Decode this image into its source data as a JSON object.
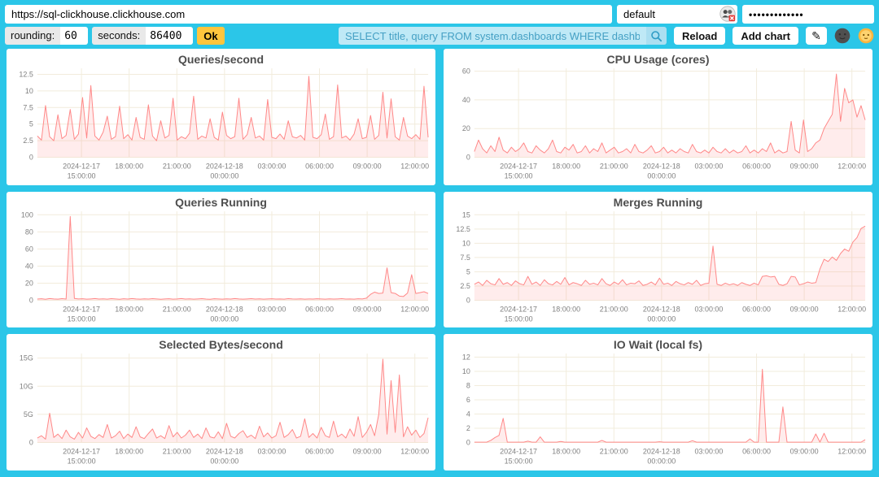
{
  "topbar": {
    "url_value": "https://sql-clickhouse.clickhouse.com",
    "user_value": "default",
    "password_value": "•••••••••••••",
    "auth_icon": "busts-silhouette-with-red-x",
    "rounding_label": "rounding:",
    "rounding_value": "60",
    "seconds_label": "seconds:",
    "seconds_value": "86400",
    "ok_label": "Ok",
    "query_value": "SELECT title, query FROM system.dashboards WHERE dashboard = '",
    "search_icon": "magnifier",
    "reload_label": "Reload",
    "add_chart_label": "Add chart",
    "edit_icon_glyph": "✎",
    "dark_theme_icon": "new-moon-face",
    "light_theme_icon": "sun-with-face"
  },
  "colors": {
    "background": "#2bc6e8",
    "panel": "#ffffff",
    "series": "#ff8888",
    "series_fill_opacity": 0.16,
    "grid": "#f2ecdc",
    "axis_text": "#808080",
    "title_text": "#4e4e4e",
    "ok_button": "#ffc53d",
    "query_bg": "#bfe9f6",
    "query_text": "#45a0c4"
  },
  "chart_data": [
    {
      "type": "area",
      "title": "Queries/second",
      "ylim": [
        0,
        13.4
      ],
      "y_ticks": [
        {
          "value": 0,
          "label": "0"
        },
        {
          "value": 2.5,
          "label": "2.5"
        },
        {
          "value": 5,
          "label": "5"
        },
        {
          "value": 7.5,
          "label": "7.5"
        },
        {
          "value": 10,
          "label": "10"
        },
        {
          "value": 12.5,
          "label": "12.5"
        }
      ],
      "x_ticks": [
        {
          "fraction": 0.113,
          "line1": "2024-12-17",
          "line2": "15:00:00"
        },
        {
          "fraction": 0.235,
          "line1": "18:00:00",
          "line2": ""
        },
        {
          "fraction": 0.357,
          "line1": "21:00:00",
          "line2": ""
        },
        {
          "fraction": 0.479,
          "line1": "2024-12-18",
          "line2": "00:00:00"
        },
        {
          "fraction": 0.6,
          "line1": "03:00:00",
          "line2": ""
        },
        {
          "fraction": 0.722,
          "line1": "06:00:00",
          "line2": ""
        },
        {
          "fraction": 0.844,
          "line1": "09:00:00",
          "line2": ""
        },
        {
          "fraction": 0.966,
          "line1": "12:00:00",
          "line2": ""
        }
      ],
      "values": [
        3.2,
        2.6,
        7.8,
        3.1,
        2.5,
        6.4,
        2.8,
        3.3,
        7.2,
        2.7,
        3.5,
        9.0,
        2.9,
        10.8,
        3.2,
        2.6,
        3.8,
        6.2,
        2.7,
        3.1,
        7.7,
        2.8,
        3.4,
        2.6,
        6.0,
        3.0,
        2.7,
        7.9,
        3.2,
        2.5,
        5.5,
        2.9,
        3.3,
        8.9,
        2.6,
        3.1,
        2.8,
        3.6,
        9.2,
        2.7,
        3.2,
        2.9,
        5.8,
        3.0,
        2.6,
        6.8,
        3.3,
        2.8,
        3.1,
        8.9,
        2.7,
        3.4,
        6.0,
        2.9,
        3.2,
        2.6,
        8.7,
        3.0,
        2.8,
        3.5,
        2.7,
        5.5,
        3.1,
        2.9,
        3.3,
        2.6,
        12.2,
        3.0,
        2.8,
        3.4,
        6.5,
        2.7,
        3.1,
        10.9,
        2.9,
        3.2,
        2.6,
        3.5,
        5.8,
        2.8,
        3.0,
        6.3,
        2.7,
        3.3,
        9.8,
        2.9,
        8.8,
        3.1,
        2.6,
        6.0,
        3.2,
        2.8,
        3.4,
        2.7,
        10.7,
        3.0
      ]
    },
    {
      "type": "area",
      "title": "CPU Usage (cores)",
      "ylim": [
        0,
        62
      ],
      "y_ticks": [
        {
          "value": 0,
          "label": "0"
        },
        {
          "value": 20,
          "label": "20"
        },
        {
          "value": 40,
          "label": "40"
        },
        {
          "value": 60,
          "label": "60"
        }
      ],
      "x_ticks": [
        {
          "fraction": 0.113,
          "line1": "2024-12-17",
          "line2": "15:00:00"
        },
        {
          "fraction": 0.235,
          "line1": "18:00:00",
          "line2": ""
        },
        {
          "fraction": 0.357,
          "line1": "21:00:00",
          "line2": ""
        },
        {
          "fraction": 0.479,
          "line1": "2024-12-18",
          "line2": "00:00:00"
        },
        {
          "fraction": 0.6,
          "line1": "03:00:00",
          "line2": ""
        },
        {
          "fraction": 0.722,
          "line1": "06:00:00",
          "line2": ""
        },
        {
          "fraction": 0.844,
          "line1": "09:00:00",
          "line2": ""
        },
        {
          "fraction": 0.966,
          "line1": "12:00:00",
          "line2": ""
        }
      ],
      "values": [
        4,
        12,
        6,
        3,
        8,
        4,
        14,
        5,
        3,
        7,
        4,
        6,
        10,
        4,
        3,
        8,
        5,
        3,
        6,
        12,
        4,
        3,
        7,
        5,
        9,
        3,
        4,
        8,
        3,
        6,
        4,
        10,
        3,
        5,
        7,
        3,
        4,
        6,
        3,
        9,
        4,
        3,
        5,
        8,
        3,
        4,
        7,
        3,
        5,
        3,
        6,
        4,
        3,
        9,
        4,
        3,
        5,
        3,
        7,
        4,
        3,
        6,
        3,
        5,
        3,
        4,
        8,
        3,
        5,
        3,
        6,
        4,
        10,
        3,
        5,
        3,
        4,
        25,
        5,
        3,
        26,
        4,
        6,
        10,
        12,
        20,
        25,
        30,
        58,
        25,
        48,
        38,
        40,
        28,
        36,
        26
      ]
    },
    {
      "type": "area",
      "title": "Queries Running",
      "ylim": [
        0,
        104
      ],
      "y_ticks": [
        {
          "value": 0,
          "label": "0"
        },
        {
          "value": 20,
          "label": "20"
        },
        {
          "value": 40,
          "label": "40"
        },
        {
          "value": 60,
          "label": "60"
        },
        {
          "value": 80,
          "label": "80"
        },
        {
          "value": 100,
          "label": "100"
        }
      ],
      "x_ticks": [
        {
          "fraction": 0.113,
          "line1": "2024-12-17",
          "line2": "15:00:00"
        },
        {
          "fraction": 0.235,
          "line1": "18:00:00",
          "line2": ""
        },
        {
          "fraction": 0.357,
          "line1": "21:00:00",
          "line2": ""
        },
        {
          "fraction": 0.479,
          "line1": "2024-12-18",
          "line2": "00:00:00"
        },
        {
          "fraction": 0.6,
          "line1": "03:00:00",
          "line2": ""
        },
        {
          "fraction": 0.722,
          "line1": "06:00:00",
          "line2": ""
        },
        {
          "fraction": 0.844,
          "line1": "09:00:00",
          "line2": ""
        },
        {
          "fraction": 0.966,
          "line1": "12:00:00",
          "line2": ""
        }
      ],
      "values": [
        1.4,
        1.8,
        1.2,
        2.0,
        1.5,
        1.3,
        1.9,
        1.4,
        98,
        2.2,
        1.5,
        1.8,
        1.3,
        1.6,
        2.0,
        1.4,
        1.7,
        1.3,
        1.9,
        1.5,
        1.2,
        1.8,
        1.4,
        2.1,
        1.6,
        1.3,
        1.7,
        1.4,
        1.9,
        1.5,
        1.2,
        1.6,
        1.8,
        1.3,
        1.5,
        2.0,
        1.4,
        1.7,
        1.3,
        1.6,
        1.9,
        1.4,
        1.2,
        1.8,
        1.5,
        1.3,
        1.7,
        1.4,
        2.0,
        1.5,
        1.3,
        1.6,
        1.9,
        1.4,
        1.7,
        1.3,
        1.5,
        1.8,
        1.4,
        1.6,
        1.3,
        1.9,
        1.5,
        1.4,
        1.7,
        1.3,
        1.6,
        1.4,
        1.8,
        1.5,
        1.3,
        1.7,
        1.4,
        1.6,
        1.9,
        1.4,
        1.5,
        1.3,
        1.8,
        1.6,
        2.5,
        7,
        9.5,
        8,
        8.5,
        38,
        9,
        8,
        5,
        4.5,
        8.5,
        30,
        8,
        9,
        10,
        8
      ]
    },
    {
      "type": "area",
      "title": "Merges Running",
      "ylim": [
        0,
        15.6
      ],
      "y_ticks": [
        {
          "value": 0,
          "label": "0"
        },
        {
          "value": 2.5,
          "label": "2.5"
        },
        {
          "value": 5,
          "label": "5"
        },
        {
          "value": 7.5,
          "label": "7.5"
        },
        {
          "value": 10,
          "label": "10"
        },
        {
          "value": 12.5,
          "label": "12.5"
        },
        {
          "value": 15,
          "label": "15"
        }
      ],
      "x_ticks": [
        {
          "fraction": 0.113,
          "line1": "2024-12-17",
          "line2": "15:00:00"
        },
        {
          "fraction": 0.235,
          "line1": "18:00:00",
          "line2": ""
        },
        {
          "fraction": 0.357,
          "line1": "21:00:00",
          "line2": ""
        },
        {
          "fraction": 0.479,
          "line1": "2024-12-18",
          "line2": "00:00:00"
        },
        {
          "fraction": 0.6,
          "line1": "03:00:00",
          "line2": ""
        },
        {
          "fraction": 0.722,
          "line1": "06:00:00",
          "line2": ""
        },
        {
          "fraction": 0.844,
          "line1": "09:00:00",
          "line2": ""
        },
        {
          "fraction": 0.966,
          "line1": "12:00:00",
          "line2": ""
        }
      ],
      "values": [
        2.8,
        3.2,
        2.6,
        3.5,
        2.9,
        2.7,
        3.8,
        2.8,
        3.1,
        2.6,
        3.4,
        2.9,
        2.7,
        4.2,
        2.8,
        3.2,
        2.6,
        3.6,
        2.9,
        2.7,
        3.3,
        2.8,
        4.0,
        2.7,
        3.1,
        2.9,
        2.6,
        3.5,
        2.8,
        3.0,
        2.7,
        3.8,
        2.9,
        2.6,
        3.2,
        2.8,
        3.6,
        2.7,
        3.0,
        2.9,
        3.4,
        2.6,
        2.8,
        3.2,
        2.7,
        3.9,
        2.8,
        3.0,
        2.6,
        3.3,
        2.9,
        2.7,
        3.1,
        2.8,
        3.5,
        2.6,
        2.9,
        3.0,
        9.5,
        2.8,
        2.6,
        3.0,
        2.7,
        2.9,
        2.6,
        3.1,
        2.8,
        2.6,
        3.0,
        2.7,
        4.2,
        4.3,
        4.1,
        4.2,
        2.8,
        2.6,
        2.9,
        4.2,
        4.1,
        2.7,
        2.9,
        3.2,
        3.0,
        3.1,
        5.5,
        7.2,
        6.8,
        7.6,
        7.0,
        8.2,
        9.0,
        8.6,
        10.2,
        11.0,
        12.6,
        13.0
      ]
    },
    {
      "type": "area",
      "title": "Selected Bytes/second",
      "ylim": [
        0,
        15.8
      ],
      "y_ticks": [
        {
          "value": 0,
          "label": "0"
        },
        {
          "value": 5,
          "label": "5G"
        },
        {
          "value": 10,
          "label": "10G"
        },
        {
          "value": 15,
          "label": "15G"
        }
      ],
      "x_ticks": [
        {
          "fraction": 0.113,
          "line1": "2024-12-17",
          "line2": "15:00:00"
        },
        {
          "fraction": 0.235,
          "line1": "18:00:00",
          "line2": ""
        },
        {
          "fraction": 0.357,
          "line1": "21:00:00",
          "line2": ""
        },
        {
          "fraction": 0.479,
          "line1": "2024-12-18",
          "line2": "00:00:00"
        },
        {
          "fraction": 0.6,
          "line1": "03:00:00",
          "line2": ""
        },
        {
          "fraction": 0.722,
          "line1": "06:00:00",
          "line2": ""
        },
        {
          "fraction": 0.844,
          "line1": "09:00:00",
          "line2": ""
        },
        {
          "fraction": 0.966,
          "line1": "12:00:00",
          "line2": ""
        }
      ],
      "values": [
        0.8,
        1.2,
        0.6,
        5.2,
        0.9,
        1.5,
        0.7,
        2.2,
        1.0,
        0.6,
        1.8,
        0.8,
        2.6,
        1.1,
        0.7,
        1.4,
        0.9,
        3.2,
        0.8,
        1.2,
        2.0,
        0.7,
        1.5,
        0.9,
        2.8,
        1.0,
        0.7,
        1.6,
        2.4,
        0.8,
        1.2,
        0.7,
        3.0,
        1.0,
        1.8,
        0.8,
        1.3,
        2.2,
        0.9,
        1.5,
        0.7,
        2.6,
        1.0,
        0.8,
        1.9,
        0.7,
        3.4,
        1.1,
        0.8,
        1.6,
        2.1,
        0.9,
        1.3,
        0.7,
        2.9,
        1.0,
        1.7,
        0.8,
        1.2,
        3.6,
        0.9,
        1.4,
        2.3,
        0.8,
        1.1,
        4.2,
        0.9,
        1.6,
        0.8,
        2.7,
        1.2,
        0.9,
        3.8,
        1.0,
        1.5,
        0.8,
        2.4,
        1.1,
        4.6,
        0.9,
        1.8,
        3.2,
        1.2,
        5.0,
        14.8,
        1.5,
        11.0,
        1.8,
        12.0,
        1.0,
        2.8,
        1.3,
        2.2,
        0.9,
        1.6,
        4.4
      ]
    },
    {
      "type": "area",
      "title": "IO Wait (local fs)",
      "ylim": [
        0,
        12.5
      ],
      "y_ticks": [
        {
          "value": 0,
          "label": "0"
        },
        {
          "value": 2,
          "label": "2"
        },
        {
          "value": 4,
          "label": "4"
        },
        {
          "value": 6,
          "label": "6"
        },
        {
          "value": 8,
          "label": "8"
        },
        {
          "value": 10,
          "label": "10"
        },
        {
          "value": 12,
          "label": "12"
        }
      ],
      "x_ticks": [
        {
          "fraction": 0.113,
          "line1": "2024-12-17",
          "line2": "15:00:00"
        },
        {
          "fraction": 0.235,
          "line1": "18:00:00",
          "line2": ""
        },
        {
          "fraction": 0.357,
          "line1": "21:00:00",
          "line2": ""
        },
        {
          "fraction": 0.479,
          "line1": "2024-12-18",
          "line2": "00:00:00"
        },
        {
          "fraction": 0.6,
          "line1": "03:00:00",
          "line2": ""
        },
        {
          "fraction": 0.722,
          "line1": "06:00:00",
          "line2": ""
        },
        {
          "fraction": 0.844,
          "line1": "09:00:00",
          "line2": ""
        },
        {
          "fraction": 0.966,
          "line1": "12:00:00",
          "line2": ""
        }
      ],
      "values": [
        0.05,
        0.05,
        0.05,
        0.05,
        0.3,
        0.7,
        1.0,
        3.4,
        0.05,
        0.05,
        0.05,
        0.05,
        0.05,
        0.2,
        0.05,
        0.05,
        0.8,
        0.05,
        0.05,
        0.05,
        0.05,
        0.15,
        0.05,
        0.05,
        0.05,
        0.05,
        0.05,
        0.05,
        0.05,
        0.05,
        0.05,
        0.3,
        0.05,
        0.05,
        0.05,
        0.05,
        0.05,
        0.05,
        0.05,
        0.05,
        0.05,
        0.05,
        0.05,
        0.05,
        0.05,
        0.1,
        0.05,
        0.05,
        0.05,
        0.05,
        0.05,
        0.05,
        0.05,
        0.25,
        0.05,
        0.05,
        0.05,
        0.05,
        0.05,
        0.05,
        0.05,
        0.05,
        0.05,
        0.05,
        0.05,
        0.05,
        0.05,
        0.5,
        0.05,
        0.05,
        10.3,
        0.05,
        0.05,
        0.05,
        0.05,
        5.0,
        0.05,
        0.05,
        0.05,
        0.05,
        0.05,
        0.05,
        0.05,
        1.2,
        0.05,
        1.3,
        0.05,
        0.05,
        0.05,
        0.05,
        0.05,
        0.05,
        0.05,
        0.05,
        0.05,
        0.4
      ]
    }
  ]
}
